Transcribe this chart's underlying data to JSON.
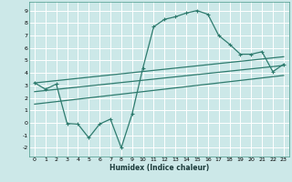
{
  "xlabel": "Humidex (Indice chaleur)",
  "bg_color": "#cce8e8",
  "grid_color": "#ffffff",
  "line_color": "#2e7b6e",
  "xlim": [
    -0.5,
    23.5
  ],
  "ylim": [
    -2.7,
    9.7
  ],
  "xticks": [
    0,
    1,
    2,
    3,
    4,
    5,
    6,
    7,
    8,
    9,
    10,
    11,
    12,
    13,
    14,
    15,
    16,
    17,
    18,
    19,
    20,
    21,
    22,
    23
  ],
  "yticks": [
    -2,
    -1,
    0,
    1,
    2,
    3,
    4,
    5,
    6,
    7,
    8,
    9
  ],
  "curve_x": [
    0,
    1,
    2,
    3,
    4,
    5,
    6,
    7,
    8,
    9,
    10,
    11,
    12,
    13,
    14,
    15,
    16,
    17,
    18,
    19,
    20,
    21,
    22,
    23
  ],
  "curve_y": [
    3.2,
    2.7,
    3.1,
    -0.05,
    -0.1,
    -1.2,
    -0.1,
    0.3,
    -2.0,
    0.7,
    4.4,
    7.7,
    8.3,
    8.5,
    8.8,
    9.0,
    8.7,
    7.0,
    6.3,
    5.5,
    5.5,
    5.7,
    4.1,
    4.7
  ],
  "line1_x": [
    0,
    23
  ],
  "line1_y": [
    3.2,
    5.3
  ],
  "line2_x": [
    0,
    23
  ],
  "line2_y": [
    2.5,
    4.6
  ],
  "line3_x": [
    0,
    23
  ],
  "line3_y": [
    1.5,
    3.8
  ]
}
